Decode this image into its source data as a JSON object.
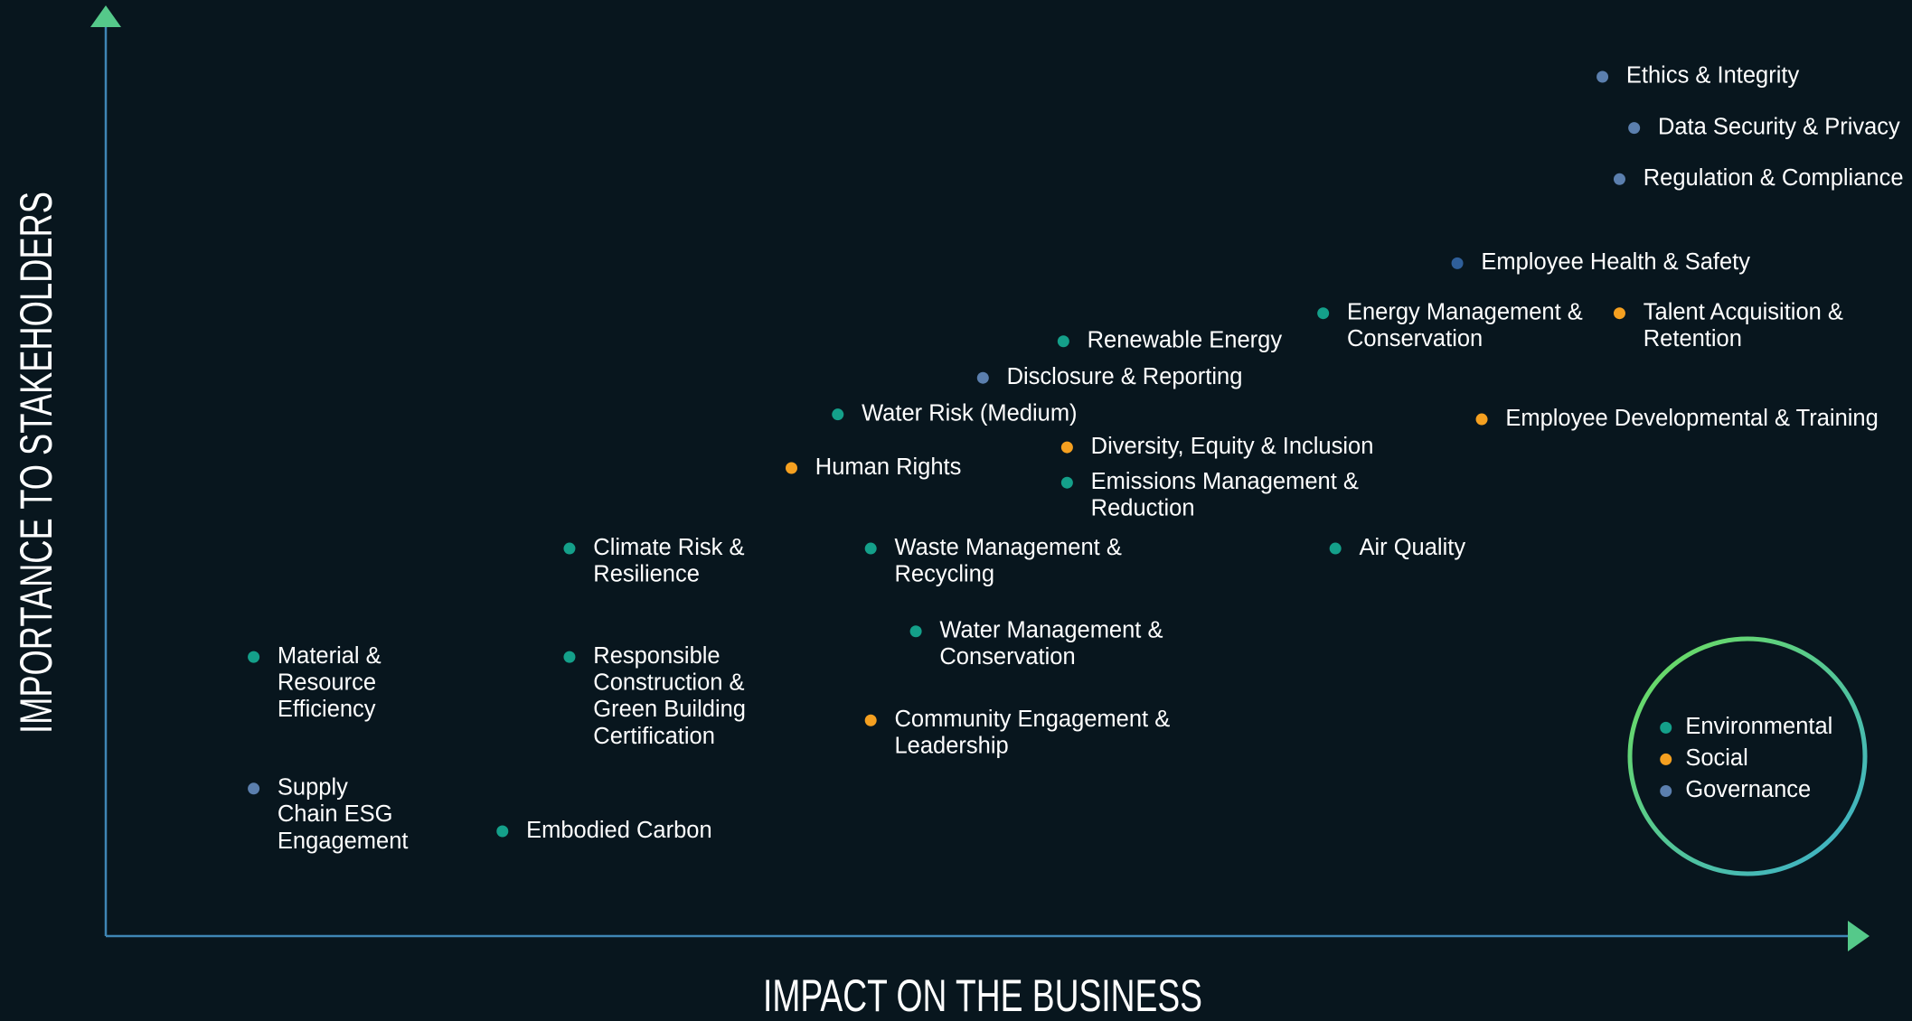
{
  "axes": {
    "y_title": "IMPORTANCE TO STAKEHOLDERS",
    "x_title": "IMPACT ON THE BUSINESS"
  },
  "legend": [
    {
      "name": "Environmental",
      "color": "#14a08a"
    },
    {
      "name": "Social",
      "color": "#f5a020"
    },
    {
      "name": "Governance",
      "color": "#5b7fae"
    }
  ],
  "nodes": [
    {
      "lines": [
        "Ethics & Integrity"
      ],
      "category": "Governance"
    },
    {
      "lines": [
        "Data Security & Privacy"
      ],
      "category": "Governance"
    },
    {
      "lines": [
        "Regulation & Compliance"
      ],
      "category": "Governance"
    },
    {
      "lines": [
        "Employee Health & Safety"
      ],
      "category": "Governance"
    },
    {
      "lines": [
        "Energy Management &",
        "Conservation"
      ],
      "category": "Environmental"
    },
    {
      "lines": [
        "Talent Acquisition &",
        "Retention"
      ],
      "category": "Social"
    },
    {
      "lines": [
        "Renewable Energy"
      ],
      "category": "Environmental"
    },
    {
      "lines": [
        "Disclosure & Reporting"
      ],
      "category": "Governance"
    },
    {
      "lines": [
        "Water Risk (Medium)"
      ],
      "category": "Environmental"
    },
    {
      "lines": [
        "Employee Developmental & Training"
      ],
      "category": "Social"
    },
    {
      "lines": [
        "Diversity, Equity & Inclusion"
      ],
      "category": "Social"
    },
    {
      "lines": [
        "Human Rights"
      ],
      "category": "Social"
    },
    {
      "lines": [
        "Emissions Management &",
        "Reduction"
      ],
      "category": "Environmental"
    },
    {
      "lines": [
        "Climate Risk &",
        "Resilience"
      ],
      "category": "Environmental"
    },
    {
      "lines": [
        "Waste Management &",
        "Recycling"
      ],
      "category": "Environmental"
    },
    {
      "lines": [
        "Air Quality"
      ],
      "category": "Environmental"
    },
    {
      "lines": [
        "Water Management &",
        "Conservation"
      ],
      "category": "Environmental"
    },
    {
      "lines": [
        "Material &",
        "Resource",
        "Efficiency"
      ],
      "category": "Environmental"
    },
    {
      "lines": [
        "Responsible",
        "Construction &",
        "Green Building",
        "Certification"
      ],
      "category": "Environmental"
    },
    {
      "lines": [
        "Community Engagement &",
        "Leadership"
      ],
      "category": "Social"
    },
    {
      "lines": [
        "Supply",
        "Chain ESG",
        "Engagement"
      ],
      "category": "Governance"
    },
    {
      "lines": [
        "Embodied Carbon"
      ],
      "category": "Environmental"
    }
  ]
}
